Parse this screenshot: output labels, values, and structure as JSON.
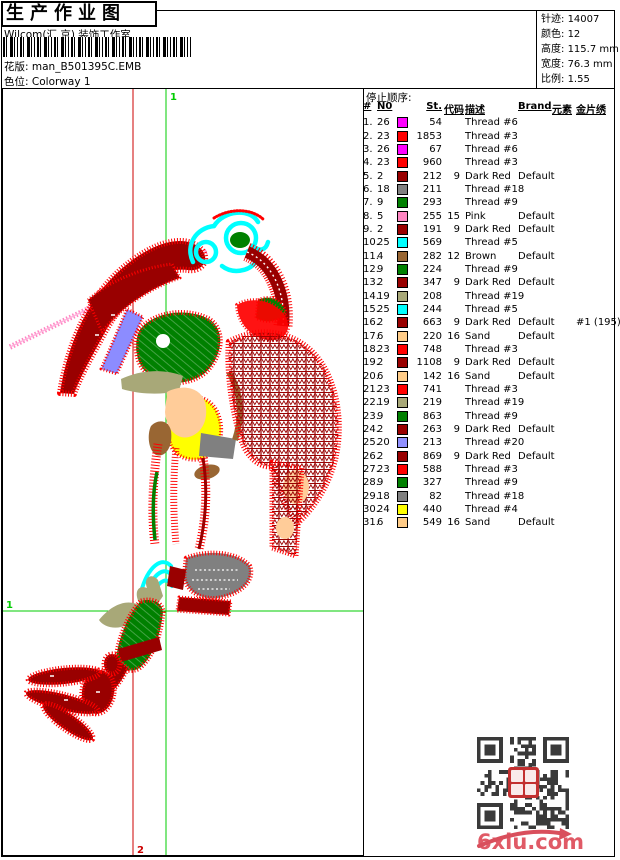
{
  "header": {
    "title": "生产作业图",
    "studio": "Wilcom(汇 京) 装饰工作室",
    "design_label": "花版:",
    "design_file": "man_B501395C.EMB",
    "colorway_label": "色位:",
    "colorway_value": "Colorway 1"
  },
  "stats": {
    "stitches_label": "针迹:",
    "stitches_value": "14007",
    "colors_label": "颜色:",
    "colors_value": "12",
    "height_label": "高度:",
    "height_value": "115.7 mm",
    "width_label": "宽度:",
    "width_value": "76.3 mm",
    "scale_label": "比例:",
    "scale_value": "1.55"
  },
  "stop_sequence": {
    "section_label": "停止顺序:",
    "headers": [
      "#",
      "N0",
      "St.",
      "代码",
      "描述",
      "Brand",
      "元素",
      "金片绣"
    ],
    "rows": [
      {
        "seq": "1.",
        "n0": "26",
        "color": "#ff00ff",
        "st": "54",
        "code": "",
        "desc": "Thread #6",
        "brand": "",
        "elem": "",
        "sequin": ""
      },
      {
        "seq": "2.",
        "n0": "23",
        "color": "#ff0000",
        "st": "1853",
        "code": "",
        "desc": "Thread #3",
        "brand": "",
        "elem": "",
        "sequin": ""
      },
      {
        "seq": "3.",
        "n0": "26",
        "color": "#ff00ff",
        "st": "67",
        "code": "",
        "desc": "Thread #6",
        "brand": "",
        "elem": "",
        "sequin": ""
      },
      {
        "seq": "4.",
        "n0": "23",
        "color": "#ff0000",
        "st": "960",
        "code": "",
        "desc": "Thread #3",
        "brand": "",
        "elem": "",
        "sequin": ""
      },
      {
        "seq": "5.",
        "n0": "2",
        "color": "#990000",
        "st": "212",
        "code": "9",
        "desc": "Dark Red",
        "brand": "Default",
        "elem": "",
        "sequin": ""
      },
      {
        "seq": "6.",
        "n0": "18",
        "color": "#808080",
        "st": "211",
        "code": "",
        "desc": "Thread #18",
        "brand": "",
        "elem": "",
        "sequin": ""
      },
      {
        "seq": "7.",
        "n0": "9",
        "color": "#008000",
        "st": "293",
        "code": "",
        "desc": "Thread #9",
        "brand": "",
        "elem": "",
        "sequin": ""
      },
      {
        "seq": "8.",
        "n0": "5",
        "color": "#ff85c2",
        "st": "255",
        "code": "15",
        "desc": "Pink",
        "brand": "Default",
        "elem": "",
        "sequin": ""
      },
      {
        "seq": "9.",
        "n0": "2",
        "color": "#990000",
        "st": "191",
        "code": "9",
        "desc": "Dark Red",
        "brand": "Default",
        "elem": "",
        "sequin": ""
      },
      {
        "seq": "10.",
        "n0": "25",
        "color": "#00ffff",
        "st": "569",
        "code": "",
        "desc": "Thread #5",
        "brand": "",
        "elem": "",
        "sequin": ""
      },
      {
        "seq": "11.",
        "n0": "4",
        "color": "#996633",
        "st": "282",
        "code": "12",
        "desc": "Brown",
        "brand": "Default",
        "elem": "",
        "sequin": ""
      },
      {
        "seq": "12.",
        "n0": "9",
        "color": "#008000",
        "st": "224",
        "code": "",
        "desc": "Thread #9",
        "brand": "",
        "elem": "",
        "sequin": ""
      },
      {
        "seq": "13.",
        "n0": "2",
        "color": "#990000",
        "st": "347",
        "code": "9",
        "desc": "Dark Red",
        "brand": "Default",
        "elem": "",
        "sequin": ""
      },
      {
        "seq": "14.",
        "n0": "19",
        "color": "#a8a878",
        "st": "208",
        "code": "",
        "desc": "Thread #19",
        "brand": "",
        "elem": "",
        "sequin": ""
      },
      {
        "seq": "15.",
        "n0": "25",
        "color": "#00ffff",
        "st": "244",
        "code": "",
        "desc": "Thread #5",
        "brand": "",
        "elem": "",
        "sequin": ""
      },
      {
        "seq": "16.",
        "n0": "2",
        "color": "#990000",
        "st": "663",
        "code": "9",
        "desc": "Dark Red",
        "brand": "Default",
        "elem": "",
        "sequin": "#1 (195)"
      },
      {
        "seq": "17.",
        "n0": "6",
        "color": "#ffcc88",
        "st": "220",
        "code": "16",
        "desc": "Sand",
        "brand": "Default",
        "elem": "",
        "sequin": ""
      },
      {
        "seq": "18.",
        "n0": "23",
        "color": "#ff0000",
        "st": "748",
        "code": "",
        "desc": "Thread #3",
        "brand": "",
        "elem": "",
        "sequin": ""
      },
      {
        "seq": "19.",
        "n0": "2",
        "color": "#990000",
        "st": "1108",
        "code": "9",
        "desc": "Dark Red",
        "brand": "Default",
        "elem": "",
        "sequin": ""
      },
      {
        "seq": "20.",
        "n0": "6",
        "color": "#ffcc88",
        "st": "142",
        "code": "16",
        "desc": "Sand",
        "brand": "Default",
        "elem": "",
        "sequin": ""
      },
      {
        "seq": "21.",
        "n0": "23",
        "color": "#ff0000",
        "st": "741",
        "code": "",
        "desc": "Thread #3",
        "brand": "",
        "elem": "",
        "sequin": ""
      },
      {
        "seq": "22.",
        "n0": "19",
        "color": "#a8a878",
        "st": "219",
        "code": "",
        "desc": "Thread #19",
        "brand": "",
        "elem": "",
        "sequin": ""
      },
      {
        "seq": "23.",
        "n0": "9",
        "color": "#008000",
        "st": "863",
        "code": "",
        "desc": "Thread #9",
        "brand": "",
        "elem": "",
        "sequin": ""
      },
      {
        "seq": "24.",
        "n0": "2",
        "color": "#990000",
        "st": "263",
        "code": "9",
        "desc": "Dark Red",
        "brand": "Default",
        "elem": "",
        "sequin": ""
      },
      {
        "seq": "25.",
        "n0": "20",
        "color": "#9191ff",
        "st": "213",
        "code": "",
        "desc": "Thread #20",
        "brand": "",
        "elem": "",
        "sequin": ""
      },
      {
        "seq": "26.",
        "n0": "2",
        "color": "#990000",
        "st": "869",
        "code": "9",
        "desc": "Dark Red",
        "brand": "Default",
        "elem": "",
        "sequin": ""
      },
      {
        "seq": "27.",
        "n0": "23",
        "color": "#ff0000",
        "st": "588",
        "code": "",
        "desc": "Thread #3",
        "brand": "",
        "elem": "",
        "sequin": ""
      },
      {
        "seq": "28.",
        "n0": "9",
        "color": "#008000",
        "st": "327",
        "code": "",
        "desc": "Thread #9",
        "brand": "",
        "elem": "",
        "sequin": ""
      },
      {
        "seq": "29.",
        "n0": "18",
        "color": "#808080",
        "st": "82",
        "code": "",
        "desc": "Thread #18",
        "brand": "",
        "elem": "",
        "sequin": ""
      },
      {
        "seq": "30.",
        "n0": "24",
        "color": "#ffff00",
        "st": "440",
        "code": "",
        "desc": "Thread #4",
        "brand": "",
        "elem": "",
        "sequin": ""
      },
      {
        "seq": "31.",
        "n0": "6",
        "color": "#ffcc88",
        "st": "549",
        "code": "16",
        "desc": "Sand",
        "brand": "Default",
        "elem": "",
        "sequin": ""
      }
    ]
  },
  "design_area": {
    "marker_top": "1",
    "marker_left": "1",
    "marker_bottom": "2",
    "crosshair_green": "#00cc00",
    "crosshair_red": "#cc0000"
  },
  "palette": {
    "magenta": "#ff00ff",
    "red": "#ff0000",
    "dark_red": "#990000",
    "gray": "#808080",
    "green": "#008000",
    "pink": "#ff85c2",
    "cyan": "#00ffff",
    "brown": "#996633",
    "khaki": "#a8a878",
    "sand": "#ffcc99",
    "periwinkle": "#8c8cff",
    "yellow": "#ffff00"
  },
  "footer": {
    "site_logo": "6xiu.com"
  }
}
